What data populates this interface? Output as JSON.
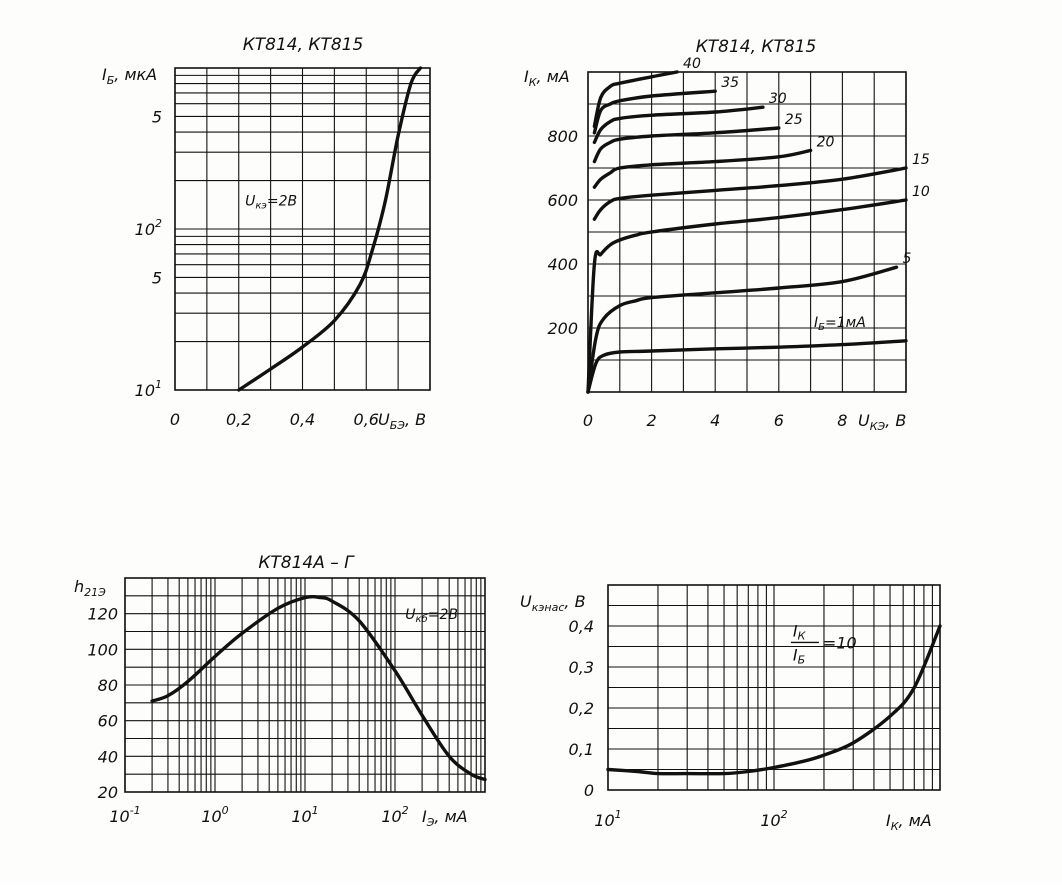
{
  "chart_data": [
    {
      "id": "ib_vs_ube",
      "type": "line",
      "title": "КТ814, КТ815",
      "xlabel": "U_БЭ, В",
      "ylabel": "I_Б, мкА",
      "x_scale": "linear",
      "y_scale": "log",
      "xlim": [
        0,
        0.8
      ],
      "ylim": [
        10,
        1000
      ],
      "grid": true,
      "x_ticks": [
        {
          "value": 0,
          "label": "0"
        },
        {
          "value": 0.2,
          "label": "0,2"
        },
        {
          "value": 0.4,
          "label": "0,4"
        },
        {
          "value": 0.6,
          "label": "0,6"
        }
      ],
      "x_axis_tail": "U",
      "x_axis_tail_sub": "БЭ",
      "x_axis_tail_unit": ", В",
      "y_ticks": [
        {
          "value": 10,
          "label": "10",
          "sup": "1"
        },
        {
          "value": 50,
          "label": "5",
          "sup": ""
        },
        {
          "value": 100,
          "label": "10",
          "sup": "2"
        },
        {
          "value": 500,
          "label": "5",
          "sup": ""
        }
      ],
      "y_axis_head": "I",
      "y_axis_head_sub": "Б",
      "y_axis_head_unit": ", мкА",
      "annotations": [
        {
          "main": "U",
          "sub": "кэ",
          "rest": "=2В",
          "x": 0.22,
          "y": 140
        }
      ],
      "series": [
        {
          "x": [
            0.2,
            0.3,
            0.4,
            0.5,
            0.58,
            0.62,
            0.66,
            0.7,
            0.74,
            0.77
          ],
          "y": [
            10,
            13.5,
            18.5,
            27,
            45,
            75,
            150,
            380,
            800,
            1000
          ]
        }
      ]
    },
    {
      "id": "ic_vs_uce",
      "type": "line",
      "title": "КТ814, КТ815",
      "xlabel": "U_КЭ, В",
      "ylabel": "I_К, мА",
      "x_scale": "linear",
      "y_scale": "linear",
      "xlim": [
        0,
        10
      ],
      "ylim": [
        0,
        1000
      ],
      "grid": true,
      "x_ticks": [
        {
          "value": 0,
          "label": "0"
        },
        {
          "value": 2,
          "label": "2"
        },
        {
          "value": 4,
          "label": "4"
        },
        {
          "value": 6,
          "label": "6"
        },
        {
          "value": 8,
          "label": "8"
        }
      ],
      "x_axis_tail": "U",
      "x_axis_tail_sub": "КЭ",
      "x_axis_tail_unit": ", В",
      "y_ticks": [
        {
          "value": 200,
          "label": "200"
        },
        {
          "value": 400,
          "label": "400"
        },
        {
          "value": 600,
          "label": "600"
        },
        {
          "value": 800,
          "label": "800"
        }
      ],
      "y_axis_head": "I",
      "y_axis_head_sub": "К",
      "y_axis_head_unit": ", мА",
      "series": [
        {
          "name": "I_Б=1мА",
          "label": "I",
          "label_sub": "Б",
          "label_rest": "=1мА",
          "x": [
            0,
            0.25,
            0.5,
            1,
            2,
            4,
            6,
            8,
            10
          ],
          "y": [
            0,
            90,
            115,
            125,
            128,
            135,
            140,
            148,
            160
          ]
        },
        {
          "name": "5",
          "label": "5",
          "x": [
            0,
            0.25,
            0.5,
            1,
            1.5,
            2,
            4,
            6,
            8,
            9.7
          ],
          "y": [
            0,
            170,
            230,
            270,
            285,
            295,
            310,
            325,
            345,
            390
          ]
        },
        {
          "name": "10",
          "label": "10",
          "x": [
            0,
            0.2,
            0.4,
            0.7,
            1,
            1.5,
            2,
            4,
            6,
            8,
            10
          ],
          "y": [
            0,
            400,
            430,
            460,
            475,
            490,
            500,
            525,
            545,
            570,
            600
          ]
        },
        {
          "name": "15",
          "label": "15",
          "x": [
            0.2,
            0.4,
            0.7,
            1,
            2,
            4,
            6,
            8,
            10
          ],
          "y": [
            540,
            570,
            595,
            605,
            615,
            630,
            645,
            665,
            700
          ]
        },
        {
          "name": "20",
          "label": "20",
          "x": [
            0.2,
            0.4,
            0.7,
            1,
            2,
            4,
            6,
            7
          ],
          "y": [
            640,
            665,
            685,
            700,
            710,
            720,
            735,
            755
          ]
        },
        {
          "name": "25",
          "label": "25",
          "x": [
            0.2,
            0.4,
            0.7,
            1,
            2,
            4,
            6
          ],
          "y": [
            720,
            760,
            780,
            790,
            800,
            810,
            825
          ]
        },
        {
          "name": "30",
          "label": "30",
          "x": [
            0.2,
            0.4,
            0.7,
            1,
            2,
            4,
            5.5
          ],
          "y": [
            780,
            820,
            845,
            855,
            865,
            875,
            890
          ]
        },
        {
          "name": "35",
          "label": "35",
          "x": [
            0.2,
            0.4,
            0.7,
            1,
            2,
            4
          ],
          "y": [
            810,
            880,
            900,
            910,
            925,
            940
          ]
        },
        {
          "name": "40",
          "label": "40",
          "x": [
            0.2,
            0.4,
            0.7,
            1,
            2,
            2.8
          ],
          "y": [
            830,
            920,
            955,
            965,
            985,
            1000
          ]
        }
      ]
    },
    {
      "id": "h21e_vs_ie",
      "type": "line",
      "title": "КТ814А – Г",
      "xlabel": "I_Э, мА",
      "ylabel": "h_21Э",
      "x_scale": "log",
      "y_scale": "linear",
      "xlim": [
        0.1,
        1000
      ],
      "ylim": [
        20,
        140
      ],
      "grid": true,
      "x_ticks": [
        {
          "value": 0.1,
          "label": "10",
          "sup": "-1"
        },
        {
          "value": 1,
          "label": "10",
          "sup": "0"
        },
        {
          "value": 10,
          "label": "10",
          "sup": "1"
        },
        {
          "value": 100,
          "label": "10",
          "sup": "2"
        }
      ],
      "x_axis_tail": "I",
      "x_axis_tail_sub": "Э",
      "x_axis_tail_unit": ", мА",
      "y_ticks": [
        {
          "value": 20,
          "label": "20"
        },
        {
          "value": 40,
          "label": "40"
        },
        {
          "value": 60,
          "label": "60"
        },
        {
          "value": 80,
          "label": "80"
        },
        {
          "value": 100,
          "label": "100"
        },
        {
          "value": 120,
          "label": "120"
        }
      ],
      "y_axis_head": "h",
      "y_axis_head_sub": "21Э",
      "y_axis_head_unit": "",
      "annotations": [
        {
          "main": "U",
          "sub": "кб",
          "rest": "=2В",
          "x": 130,
          "y": 117
        }
      ],
      "series": [
        {
          "x": [
            0.2,
            0.3,
            0.5,
            1,
            2,
            5,
            10,
            15,
            20,
            40,
            100,
            200,
            400,
            700,
            1000
          ],
          "y": [
            71,
            74,
            82,
            96,
            109,
            123,
            129,
            129,
            127,
            116,
            88,
            63,
            40,
            30,
            27
          ]
        }
      ]
    },
    {
      "id": "ucesat_vs_ic",
      "type": "line",
      "title": "",
      "xlabel": "I_К, мА",
      "ylabel": "U_КЭнас, В",
      "x_scale": "log",
      "y_scale": "linear",
      "xlim": [
        10,
        1000
      ],
      "ylim": [
        0,
        0.5
      ],
      "grid": true,
      "x_ticks": [
        {
          "value": 10,
          "label": "10",
          "sup": "1"
        },
        {
          "value": 100,
          "label": "10",
          "sup": "2"
        }
      ],
      "x_axis_tail": "I",
      "x_axis_tail_sub": "К",
      "x_axis_tail_unit": ", мА",
      "y_ticks": [
        {
          "value": 0,
          "label": "0"
        },
        {
          "value": 0.1,
          "label": "0,1"
        },
        {
          "value": 0.2,
          "label": "0,2"
        },
        {
          "value": 0.3,
          "label": "0,3"
        },
        {
          "value": 0.4,
          "label": "0,4"
        }
      ],
      "y_axis_head": "U",
      "y_axis_head_sub": "кэнас",
      "y_axis_head_unit": ", В",
      "annotations": [
        {
          "fraction_num": "I",
          "fraction_num_sub": "К",
          "fraction_den": "I",
          "fraction_den_sub": "Б",
          "rest": "=10",
          "x": 130,
          "y": 0.36
        }
      ],
      "series": [
        {
          "x": [
            10,
            15,
            20,
            30,
            50,
            70,
            100,
            150,
            200,
            300,
            500,
            700,
            1000
          ],
          "y": [
            0.05,
            0.045,
            0.04,
            0.04,
            0.04,
            0.045,
            0.055,
            0.07,
            0.085,
            0.115,
            0.18,
            0.25,
            0.4
          ]
        }
      ]
    }
  ]
}
